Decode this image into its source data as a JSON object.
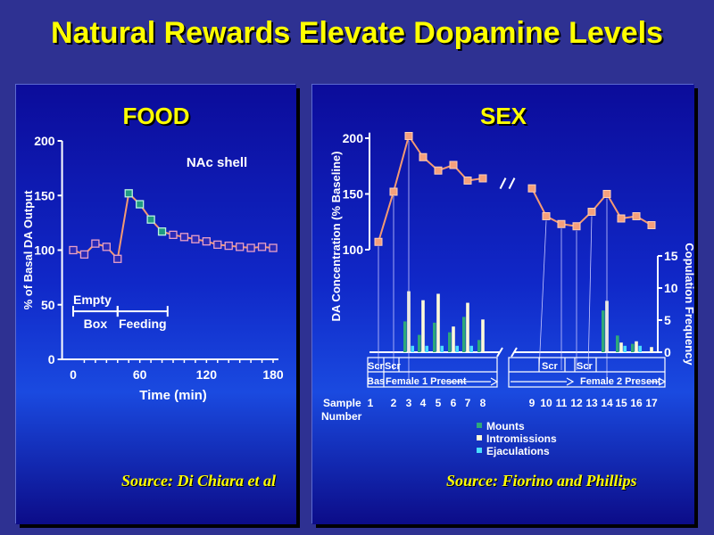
{
  "title": "Natural Rewards Elevate Dopamine Levels",
  "chart_data": [
    {
      "type": "line",
      "panel_title": "FOOD",
      "annotation": "NAc shell",
      "xlabel": "Time (min)",
      "ylabel": "% of Basal DA Output",
      "xlim": [
        -10,
        185
      ],
      "ylim": [
        0,
        200
      ],
      "x_ticks": [
        "0",
        "60",
        "120",
        "180"
      ],
      "y_ticks": [
        "0",
        "50",
        "100",
        "150",
        "200"
      ],
      "phases": [
        {
          "label_top": "Empty",
          "label_bottom": "Box",
          "x_start": 0,
          "x_end": 40
        },
        {
          "label_top": "",
          "label_bottom": "Feeding",
          "x_start": 40,
          "x_end": 85
        }
      ],
      "series": [
        {
          "x": [
            0,
            10,
            20,
            30,
            40,
            50,
            60,
            70,
            80,
            90,
            100,
            110,
            120,
            130,
            140,
            150,
            160,
            170,
            180
          ],
          "y": [
            100,
            96,
            106,
            103,
            92,
            152,
            142,
            128,
            117,
            114,
            112,
            110,
            108,
            105,
            104,
            103,
            102,
            103,
            102
          ],
          "highlight_indices": [
            5,
            6,
            7,
            8
          ]
        }
      ],
      "source": "Source: Di Chiara et al"
    },
    {
      "type": "line+bar",
      "panel_title": "SEX",
      "ylabel": "DA Concentration (% Baseline)",
      "y2label": "Copulation Frequency",
      "ylim_visible": [
        100,
        200
      ],
      "y_ticks": [
        "100",
        "150",
        "200"
      ],
      "y2lim": [
        0,
        15
      ],
      "y2_ticks": [
        "0",
        "5",
        "10",
        "15"
      ],
      "x_prefix": "Sample",
      "x_prefix2": "Number",
      "samples": [
        "1",
        "2",
        "3",
        "4",
        "5",
        "6",
        "7",
        "8",
        "9",
        "10",
        "11",
        "12",
        "13",
        "14",
        "15",
        "16",
        "17"
      ],
      "da_values": [
        107,
        152,
        202,
        183,
        171,
        176,
        162,
        164,
        155,
        130,
        123,
        121,
        134,
        150,
        128,
        130,
        122
      ],
      "axis_break_after_sample": 8,
      "bar_series": [
        {
          "name": "Mounts",
          "color": "#2ea87a",
          "values": [
            0,
            0,
            4.8,
            2.7,
            4.6,
            3.1,
            5.5,
            1.9,
            0,
            0,
            0,
            0,
            0,
            6.5,
            2.6,
            1.3,
            0
          ]
        },
        {
          "name": "Intromissions",
          "color": "#fffbd8",
          "values": [
            0,
            0,
            9.5,
            8.1,
            9.1,
            4.0,
            7.7,
            5.1,
            0,
            0,
            0,
            0,
            0,
            8.0,
            1.5,
            1.7,
            0.8
          ]
        },
        {
          "name": "Ejaculations",
          "color": "#49ddff",
          "values": [
            0,
            0,
            1.0,
            1.0,
            1.0,
            1.0,
            1.0,
            0,
            0,
            0,
            0,
            0,
            0,
            0,
            1.0,
            1.0,
            0
          ]
        }
      ],
      "phase_labels": [
        {
          "text": "Scr",
          "row": 1
        },
        {
          "text": "Scr",
          "row": 1
        },
        {
          "text": "Bas",
          "row": 2
        },
        {
          "text": "Female 1 Present",
          "row": 2
        },
        {
          "text": "Scr",
          "row": 1
        },
        {
          "text": "Scr",
          "row": 1
        },
        {
          "text": "Female 2 Present",
          "row": 2
        }
      ],
      "source": "Source: Fiorino and Phillips"
    }
  ]
}
